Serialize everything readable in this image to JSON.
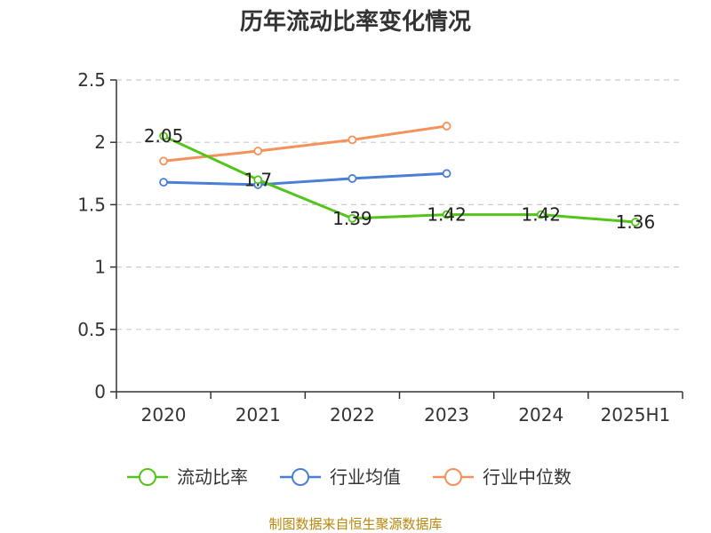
{
  "chart_data": {
    "type": "line",
    "title": "历年流动比率变化情况",
    "categories": [
      "2020",
      "2021",
      "2022",
      "2023",
      "2024",
      "2025H1"
    ],
    "ylim": [
      0,
      2.5
    ],
    "yticks": [
      "0",
      "0.5",
      "1",
      "1.5",
      "2",
      "2.5"
    ],
    "grid": true,
    "legend_position": "bottom",
    "series": [
      {
        "name": "流动比率",
        "color": "#52c41a",
        "values": [
          2.05,
          1.7,
          1.39,
          1.42,
          1.42,
          1.36
        ],
        "labels": [
          "2.05",
          "1.7",
          "1.39",
          "1.42",
          "1.42",
          "1.36"
        ]
      },
      {
        "name": "行业均值",
        "color": "#4a7fd6",
        "values": [
          1.68,
          1.66,
          1.71,
          1.75,
          null,
          null
        ]
      },
      {
        "name": "行业中位数",
        "color": "#f5915a",
        "values": [
          1.85,
          1.93,
          2.02,
          2.13,
          null,
          null
        ]
      }
    ]
  },
  "source": "制图数据来自恒生聚源数据库"
}
